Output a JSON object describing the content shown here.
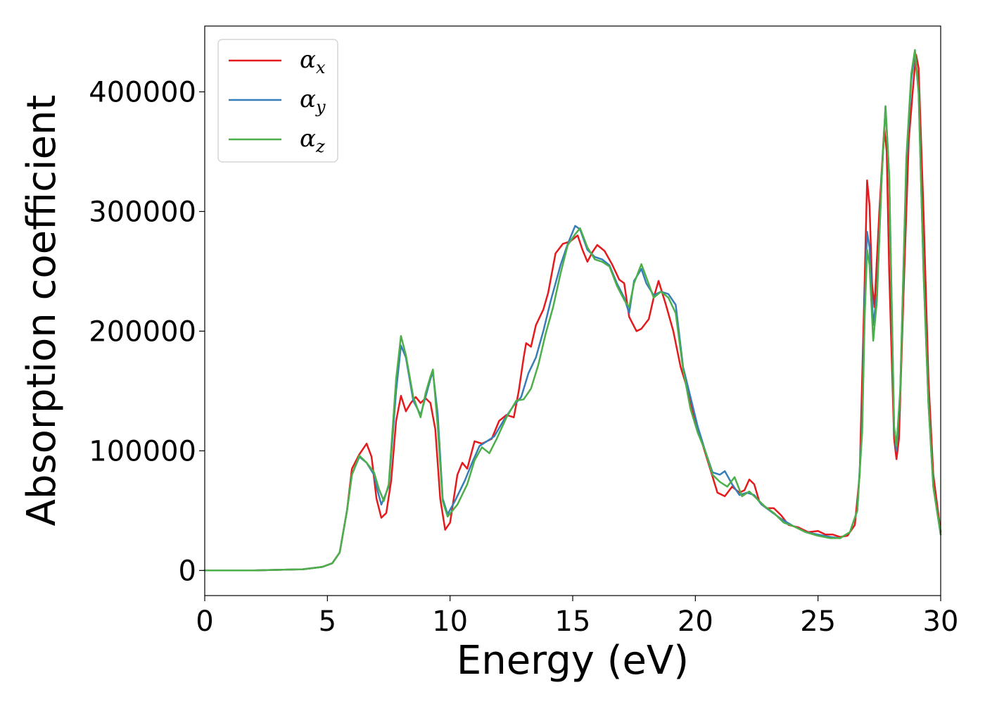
{
  "chart_data": {
    "type": "line",
    "title": "",
    "xlabel": "Energy (eV)",
    "ylabel": "Absorption coefficient",
    "xlim": [
      0,
      30
    ],
    "ylim": [
      -21000,
      455000
    ],
    "xticks": [
      0,
      5,
      10,
      15,
      20,
      25,
      30
    ],
    "xtick_labels": [
      "0",
      "5",
      "10",
      "15",
      "20",
      "25",
      "30"
    ],
    "yticks": [
      0,
      100000,
      200000,
      300000,
      400000
    ],
    "ytick_labels": [
      "0",
      "100000",
      "200000",
      "300000",
      "400000"
    ],
    "grid": false,
    "legend_position": "upper-left",
    "series": [
      {
        "name": "α_x",
        "legend_base": "α",
        "legend_sub": "x",
        "color": "#e41a1c",
        "points": [
          [
            0,
            0
          ],
          [
            2,
            0
          ],
          [
            4,
            1000
          ],
          [
            4.8,
            3000
          ],
          [
            5.2,
            6000
          ],
          [
            5.5,
            15000
          ],
          [
            5.8,
            50000
          ],
          [
            6.0,
            85000
          ],
          [
            6.3,
            97000
          ],
          [
            6.6,
            106000
          ],
          [
            6.8,
            95000
          ],
          [
            7.0,
            60000
          ],
          [
            7.2,
            44000
          ],
          [
            7.4,
            48000
          ],
          [
            7.6,
            75000
          ],
          [
            7.8,
            125000
          ],
          [
            8.0,
            146000
          ],
          [
            8.2,
            133000
          ],
          [
            8.4,
            140000
          ],
          [
            8.6,
            145000
          ],
          [
            8.8,
            140000
          ],
          [
            9.0,
            144000
          ],
          [
            9.2,
            140000
          ],
          [
            9.4,
            118000
          ],
          [
            9.6,
            60000
          ],
          [
            9.8,
            34000
          ],
          [
            10.0,
            40000
          ],
          [
            10.3,
            80000
          ],
          [
            10.5,
            90000
          ],
          [
            10.7,
            85000
          ],
          [
            11.0,
            108000
          ],
          [
            11.3,
            106000
          ],
          [
            11.7,
            110000
          ],
          [
            12.0,
            125000
          ],
          [
            12.3,
            130000
          ],
          [
            12.6,
            128000
          ],
          [
            12.8,
            150000
          ],
          [
            13.0,
            178000
          ],
          [
            13.1,
            190000
          ],
          [
            13.3,
            187000
          ],
          [
            13.5,
            205000
          ],
          [
            13.8,
            218000
          ],
          [
            14.0,
            232000
          ],
          [
            14.3,
            265000
          ],
          [
            14.6,
            273000
          ],
          [
            14.9,
            275000
          ],
          [
            15.2,
            280000
          ],
          [
            15.4,
            268000
          ],
          [
            15.6,
            258000
          ],
          [
            15.8,
            266000
          ],
          [
            16.0,
            272000
          ],
          [
            16.3,
            267000
          ],
          [
            16.6,
            256000
          ],
          [
            16.9,
            243000
          ],
          [
            17.1,
            240000
          ],
          [
            17.3,
            212000
          ],
          [
            17.6,
            200000
          ],
          [
            17.8,
            202000
          ],
          [
            18.1,
            210000
          ],
          [
            18.3,
            228000
          ],
          [
            18.5,
            242000
          ],
          [
            18.8,
            222000
          ],
          [
            19.1,
            200000
          ],
          [
            19.4,
            170000
          ],
          [
            19.7,
            150000
          ],
          [
            20.0,
            125000
          ],
          [
            20.3,
            105000
          ],
          [
            20.6,
            85000
          ],
          [
            20.9,
            65000
          ],
          [
            21.2,
            62000
          ],
          [
            21.5,
            70000
          ],
          [
            21.8,
            65000
          ],
          [
            22.0,
            67000
          ],
          [
            22.2,
            76000
          ],
          [
            22.4,
            72000
          ],
          [
            22.6,
            58000
          ],
          [
            22.9,
            52000
          ],
          [
            23.2,
            52000
          ],
          [
            23.5,
            46000
          ],
          [
            23.8,
            38000
          ],
          [
            24.2,
            36000
          ],
          [
            24.6,
            32000
          ],
          [
            25.0,
            33000
          ],
          [
            25.3,
            30000
          ],
          [
            25.6,
            30000
          ],
          [
            25.9,
            28000
          ],
          [
            26.2,
            29000
          ],
          [
            26.5,
            38000
          ],
          [
            26.7,
            80000
          ],
          [
            26.9,
            240000
          ],
          [
            27.0,
            326000
          ],
          [
            27.1,
            305000
          ],
          [
            27.2,
            240000
          ],
          [
            27.3,
            220000
          ],
          [
            27.5,
            300000
          ],
          [
            27.7,
            370000
          ],
          [
            27.8,
            350000
          ],
          [
            27.9,
            250000
          ],
          [
            28.1,
            110000
          ],
          [
            28.2,
            93000
          ],
          [
            28.3,
            110000
          ],
          [
            28.5,
            240000
          ],
          [
            28.7,
            360000
          ],
          [
            28.9,
            410000
          ],
          [
            29.0,
            431000
          ],
          [
            29.1,
            420000
          ],
          [
            29.3,
            300000
          ],
          [
            29.5,
            160000
          ],
          [
            29.7,
            80000
          ],
          [
            30.0,
            32000
          ]
        ]
      },
      {
        "name": "α_y",
        "legend_base": "α",
        "legend_sub": "y",
        "color": "#377eb8",
        "points": [
          [
            0,
            0
          ],
          [
            2,
            0
          ],
          [
            4,
            1000
          ],
          [
            4.8,
            3000
          ],
          [
            5.2,
            6000
          ],
          [
            5.5,
            15000
          ],
          [
            5.8,
            50000
          ],
          [
            6.0,
            80000
          ],
          [
            6.3,
            95000
          ],
          [
            6.6,
            90000
          ],
          [
            6.9,
            80000
          ],
          [
            7.0,
            70000
          ],
          [
            7.2,
            55000
          ],
          [
            7.5,
            70000
          ],
          [
            7.8,
            150000
          ],
          [
            8.0,
            188000
          ],
          [
            8.2,
            178000
          ],
          [
            8.5,
            142000
          ],
          [
            8.8,
            130000
          ],
          [
            9.0,
            145000
          ],
          [
            9.2,
            160000
          ],
          [
            9.3,
            166000
          ],
          [
            9.5,
            130000
          ],
          [
            9.7,
            60000
          ],
          [
            9.9,
            47000
          ],
          [
            10.2,
            58000
          ],
          [
            10.6,
            75000
          ],
          [
            10.9,
            90000
          ],
          [
            11.2,
            104000
          ],
          [
            11.5,
            108000
          ],
          [
            11.8,
            112000
          ],
          [
            12.2,
            126000
          ],
          [
            12.6,
            138000
          ],
          [
            12.9,
            145000
          ],
          [
            13.2,
            165000
          ],
          [
            13.5,
            178000
          ],
          [
            13.8,
            200000
          ],
          [
            14.1,
            225000
          ],
          [
            14.5,
            255000
          ],
          [
            14.8,
            273000
          ],
          [
            15.1,
            288000
          ],
          [
            15.3,
            285000
          ],
          [
            15.6,
            268000
          ],
          [
            15.9,
            262000
          ],
          [
            16.2,
            260000
          ],
          [
            16.5,
            255000
          ],
          [
            16.8,
            240000
          ],
          [
            17.1,
            228000
          ],
          [
            17.3,
            215000
          ],
          [
            17.5,
            242000
          ],
          [
            17.8,
            252000
          ],
          [
            18.0,
            240000
          ],
          [
            18.3,
            230000
          ],
          [
            18.6,
            233000
          ],
          [
            18.9,
            231000
          ],
          [
            19.2,
            222000
          ],
          [
            19.5,
            170000
          ],
          [
            19.8,
            145000
          ],
          [
            20.1,
            120000
          ],
          [
            20.4,
            100000
          ],
          [
            20.7,
            82000
          ],
          [
            21.0,
            80000
          ],
          [
            21.2,
            83000
          ],
          [
            21.5,
            72000
          ],
          [
            21.8,
            63000
          ],
          [
            22.1,
            65000
          ],
          [
            22.4,
            63000
          ],
          [
            22.7,
            55000
          ],
          [
            23.1,
            49000
          ],
          [
            23.5,
            43000
          ],
          [
            24.0,
            37000
          ],
          [
            24.5,
            32000
          ],
          [
            25.0,
            30000
          ],
          [
            25.5,
            28000
          ],
          [
            25.9,
            27000
          ],
          [
            26.3,
            32000
          ],
          [
            26.6,
            50000
          ],
          [
            26.8,
            120000
          ],
          [
            26.9,
            220000
          ],
          [
            27.0,
            283000
          ],
          [
            27.1,
            270000
          ],
          [
            27.25,
            205000
          ],
          [
            27.4,
            230000
          ],
          [
            27.6,
            330000
          ],
          [
            27.75,
            388000
          ],
          [
            27.9,
            330000
          ],
          [
            28.1,
            120000
          ],
          [
            28.2,
            100000
          ],
          [
            28.35,
            150000
          ],
          [
            28.6,
            340000
          ],
          [
            28.8,
            410000
          ],
          [
            28.95,
            433000
          ],
          [
            29.1,
            400000
          ],
          [
            29.3,
            250000
          ],
          [
            29.5,
            140000
          ],
          [
            29.7,
            70000
          ],
          [
            30.0,
            30000
          ]
        ]
      },
      {
        "name": "α_z",
        "legend_base": "α",
        "legend_sub": "z",
        "color": "#4daf4a",
        "points": [
          [
            0,
            0
          ],
          [
            2,
            0
          ],
          [
            4,
            1000
          ],
          [
            4.8,
            3000
          ],
          [
            5.2,
            6000
          ],
          [
            5.5,
            15000
          ],
          [
            5.8,
            50000
          ],
          [
            6.0,
            80000
          ],
          [
            6.3,
            96000
          ],
          [
            6.6,
            90000
          ],
          [
            6.9,
            82000
          ],
          [
            7.1,
            68000
          ],
          [
            7.3,
            58000
          ],
          [
            7.5,
            72000
          ],
          [
            7.8,
            160000
          ],
          [
            8.0,
            196000
          ],
          [
            8.2,
            180000
          ],
          [
            8.5,
            145000
          ],
          [
            8.8,
            128000
          ],
          [
            9.0,
            148000
          ],
          [
            9.2,
            162000
          ],
          [
            9.3,
            168000
          ],
          [
            9.5,
            120000
          ],
          [
            9.7,
            58000
          ],
          [
            9.9,
            45000
          ],
          [
            10.3,
            55000
          ],
          [
            10.7,
            72000
          ],
          [
            11.0,
            92000
          ],
          [
            11.3,
            103000
          ],
          [
            11.6,
            98000
          ],
          [
            11.9,
            110000
          ],
          [
            12.3,
            128000
          ],
          [
            12.7,
            142000
          ],
          [
            13.0,
            143000
          ],
          [
            13.3,
            152000
          ],
          [
            13.6,
            172000
          ],
          [
            13.9,
            198000
          ],
          [
            14.2,
            220000
          ],
          [
            14.5,
            248000
          ],
          [
            14.8,
            272000
          ],
          [
            15.1,
            281000
          ],
          [
            15.3,
            286000
          ],
          [
            15.6,
            270000
          ],
          [
            15.9,
            260000
          ],
          [
            16.2,
            258000
          ],
          [
            16.5,
            254000
          ],
          [
            16.8,
            238000
          ],
          [
            17.1,
            226000
          ],
          [
            17.3,
            220000
          ],
          [
            17.5,
            240000
          ],
          [
            17.8,
            256000
          ],
          [
            18.0,
            245000
          ],
          [
            18.3,
            228000
          ],
          [
            18.6,
            233000
          ],
          [
            18.9,
            228000
          ],
          [
            19.2,
            215000
          ],
          [
            19.5,
            168000
          ],
          [
            19.8,
            135000
          ],
          [
            20.1,
            115000
          ],
          [
            20.4,
            100000
          ],
          [
            20.7,
            80000
          ],
          [
            21.0,
            74000
          ],
          [
            21.3,
            70000
          ],
          [
            21.6,
            78000
          ],
          [
            21.9,
            62000
          ],
          [
            22.2,
            66000
          ],
          [
            22.5,
            60000
          ],
          [
            22.8,
            54000
          ],
          [
            23.2,
            48000
          ],
          [
            23.6,
            40000
          ],
          [
            24.0,
            37000
          ],
          [
            24.5,
            32000
          ],
          [
            25.0,
            29000
          ],
          [
            25.5,
            27000
          ],
          [
            25.9,
            27000
          ],
          [
            26.3,
            32000
          ],
          [
            26.6,
            50000
          ],
          [
            26.8,
            115000
          ],
          [
            26.9,
            210000
          ],
          [
            27.0,
            268000
          ],
          [
            27.1,
            255000
          ],
          [
            27.25,
            192000
          ],
          [
            27.4,
            225000
          ],
          [
            27.6,
            330000
          ],
          [
            27.75,
            388000
          ],
          [
            27.9,
            330000
          ],
          [
            28.1,
            120000
          ],
          [
            28.2,
            104000
          ],
          [
            28.35,
            150000
          ],
          [
            28.6,
            345000
          ],
          [
            28.8,
            415000
          ],
          [
            28.95,
            435000
          ],
          [
            29.1,
            400000
          ],
          [
            29.3,
            250000
          ],
          [
            29.5,
            140000
          ],
          [
            29.7,
            70000
          ],
          [
            30.0,
            30000
          ]
        ]
      }
    ]
  }
}
